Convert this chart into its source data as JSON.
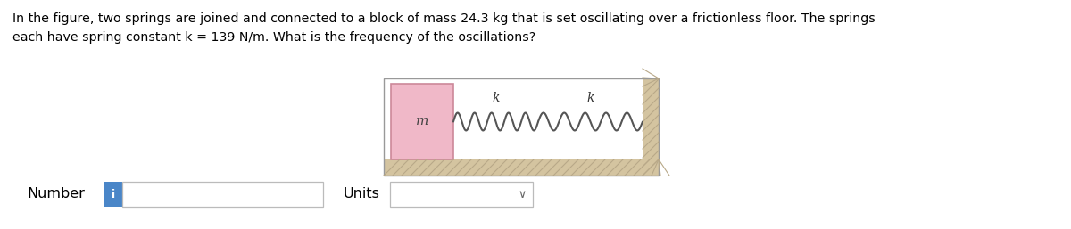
{
  "question_text_line1": "In the figure, two springs are joined and connected to a block of mass 24.3 kg that is set oscillating over a frictionless floor. The springs",
  "question_text_line2": "each have spring constant k = 139 N/m. What is the frequency of the oscillations?",
  "number_label": "Number",
  "units_label": "Units",
  "info_icon_color": "#4a86c8",
  "info_icon_text": "i",
  "text_color": "#000000",
  "bg_color": "#ffffff",
  "input_box_color": "#ffffff",
  "input_box_border": "#bbbbbb",
  "block_color": "#f0b8c8",
  "block_border": "#cc8899",
  "floor_color": "#d4c4a0",
  "wall_color": "#d4c4a0",
  "hatch_color": "#b8a888",
  "spring_color": "#555555",
  "label_k": "k",
  "label_m": "m",
  "figsize": [
    12.0,
    2.57
  ],
  "dpi": 100
}
